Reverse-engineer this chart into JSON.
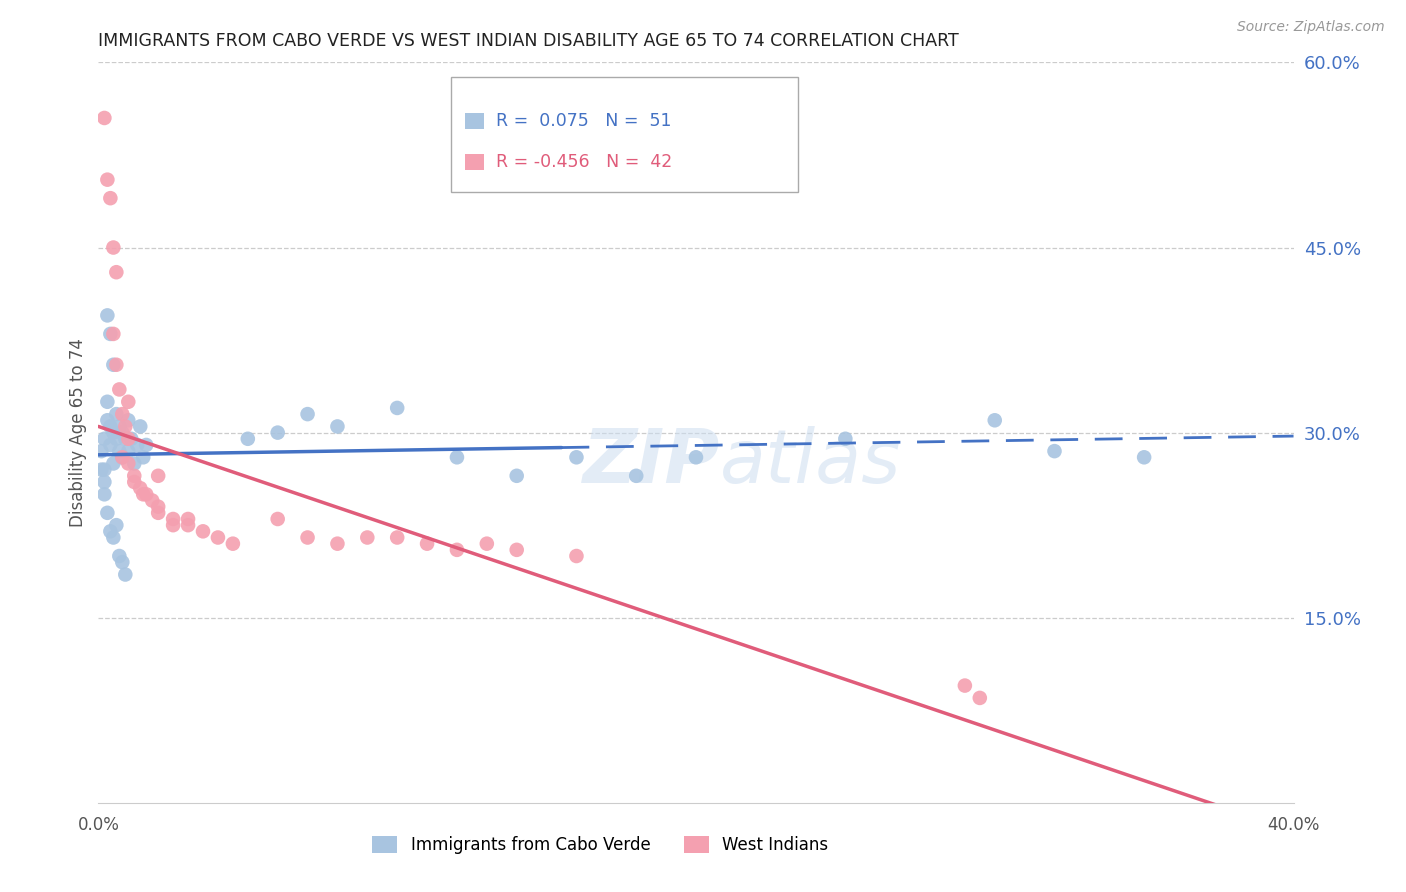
{
  "title": "IMMIGRANTS FROM CABO VERDE VS WEST INDIAN DISABILITY AGE 65 TO 74 CORRELATION CHART",
  "source": "Source: ZipAtlas.com",
  "ylabel": "Disability Age 65 to 74",
  "watermark": "ZIPatlas",
  "r_cabo": 0.075,
  "n_cabo": 51,
  "r_west": -0.456,
  "n_west": 42,
  "xmin": 0.0,
  "xmax": 0.4,
  "ymin": 0.0,
  "ymax": 0.6,
  "yticks": [
    0.0,
    0.15,
    0.3,
    0.45,
    0.6
  ],
  "ytick_labels": [
    "",
    "15.0%",
    "30.0%",
    "45.0%",
    "60.0%"
  ],
  "cabo_color": "#a8c4e0",
  "west_color": "#f4a0b0",
  "cabo_line_color": "#4472C4",
  "west_line_color": "#E05C7A",
  "cabo_scatter": [
    [
      0.001,
      0.285
    ],
    [
      0.002,
      0.295
    ],
    [
      0.002,
      0.27
    ],
    [
      0.003,
      0.31
    ],
    [
      0.003,
      0.325
    ],
    [
      0.004,
      0.305
    ],
    [
      0.004,
      0.29
    ],
    [
      0.005,
      0.3
    ],
    [
      0.005,
      0.275
    ],
    [
      0.006,
      0.315
    ],
    [
      0.006,
      0.295
    ],
    [
      0.007,
      0.305
    ],
    [
      0.007,
      0.285
    ],
    [
      0.008,
      0.3
    ],
    [
      0.008,
      0.28
    ],
    [
      0.009,
      0.295
    ],
    [
      0.01,
      0.31
    ],
    [
      0.01,
      0.285
    ],
    [
      0.011,
      0.295
    ],
    [
      0.012,
      0.275
    ],
    [
      0.013,
      0.29
    ],
    [
      0.014,
      0.305
    ],
    [
      0.015,
      0.28
    ],
    [
      0.016,
      0.29
    ],
    [
      0.003,
      0.395
    ],
    [
      0.004,
      0.38
    ],
    [
      0.005,
      0.355
    ],
    [
      0.002,
      0.25
    ],
    [
      0.003,
      0.235
    ],
    [
      0.004,
      0.22
    ],
    [
      0.005,
      0.215
    ],
    [
      0.006,
      0.225
    ],
    [
      0.007,
      0.2
    ],
    [
      0.008,
      0.195
    ],
    [
      0.009,
      0.185
    ],
    [
      0.05,
      0.295
    ],
    [
      0.06,
      0.3
    ],
    [
      0.07,
      0.315
    ],
    [
      0.08,
      0.305
    ],
    [
      0.1,
      0.32
    ],
    [
      0.12,
      0.28
    ],
    [
      0.14,
      0.265
    ],
    [
      0.16,
      0.28
    ],
    [
      0.18,
      0.265
    ],
    [
      0.2,
      0.28
    ],
    [
      0.25,
      0.295
    ],
    [
      0.3,
      0.31
    ],
    [
      0.32,
      0.285
    ],
    [
      0.001,
      0.27
    ],
    [
      0.002,
      0.26
    ],
    [
      0.35,
      0.28
    ]
  ],
  "west_scatter": [
    [
      0.002,
      0.555
    ],
    [
      0.003,
      0.505
    ],
    [
      0.004,
      0.49
    ],
    [
      0.005,
      0.45
    ],
    [
      0.006,
      0.43
    ],
    [
      0.005,
      0.38
    ],
    [
      0.006,
      0.355
    ],
    [
      0.007,
      0.335
    ],
    [
      0.008,
      0.315
    ],
    [
      0.009,
      0.305
    ],
    [
      0.01,
      0.295
    ],
    [
      0.008,
      0.28
    ],
    [
      0.01,
      0.275
    ],
    [
      0.012,
      0.265
    ],
    [
      0.012,
      0.26
    ],
    [
      0.014,
      0.255
    ],
    [
      0.015,
      0.25
    ],
    [
      0.016,
      0.25
    ],
    [
      0.018,
      0.245
    ],
    [
      0.02,
      0.24
    ],
    [
      0.02,
      0.235
    ],
    [
      0.025,
      0.23
    ],
    [
      0.025,
      0.225
    ],
    [
      0.03,
      0.23
    ],
    [
      0.03,
      0.225
    ],
    [
      0.035,
      0.22
    ],
    [
      0.04,
      0.215
    ],
    [
      0.045,
      0.21
    ],
    [
      0.06,
      0.23
    ],
    [
      0.07,
      0.215
    ],
    [
      0.08,
      0.21
    ],
    [
      0.09,
      0.215
    ],
    [
      0.1,
      0.215
    ],
    [
      0.11,
      0.21
    ],
    [
      0.12,
      0.205
    ],
    [
      0.13,
      0.21
    ],
    [
      0.14,
      0.205
    ],
    [
      0.16,
      0.2
    ],
    [
      0.29,
      0.095
    ],
    [
      0.295,
      0.085
    ],
    [
      0.01,
      0.325
    ],
    [
      0.02,
      0.265
    ]
  ],
  "background_color": "#ffffff",
  "grid_color": "#cccccc",
  "title_color": "#222222",
  "right_axis_color": "#4472C4",
  "cabo_line_intercept": 0.282,
  "cabo_line_slope": 0.038,
  "west_line_intercept": 0.305,
  "west_line_slope": -0.82
}
